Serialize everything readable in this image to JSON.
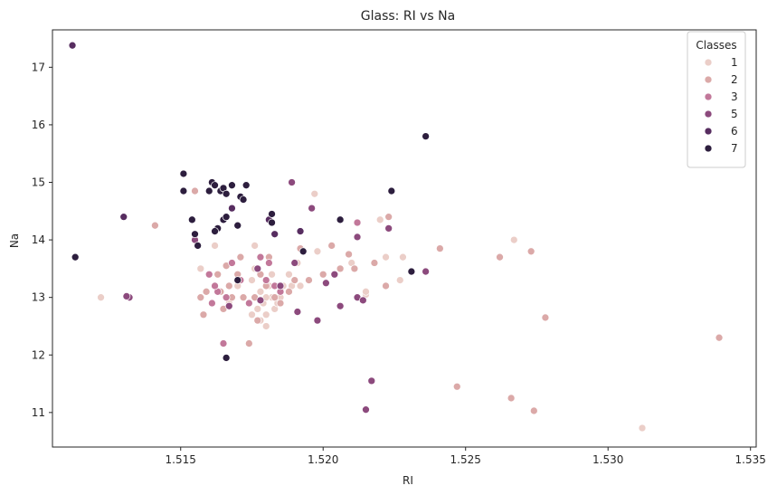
{
  "chart_data": {
    "type": "scatter",
    "title": "Glass: RI vs Na",
    "xlabel": "RI",
    "ylabel": "Na",
    "xlim": [
      1.5105,
      1.5352
    ],
    "ylim": [
      10.4,
      17.65
    ],
    "xticks": [
      1.515,
      1.52,
      1.525,
      1.53,
      1.535
    ],
    "xtick_labels": [
      "1.515",
      "1.520",
      "1.525",
      "1.530",
      "1.535"
    ],
    "yticks": [
      11,
      12,
      13,
      14,
      15,
      16,
      17
    ],
    "ytick_labels": [
      "11",
      "12",
      "13",
      "14",
      "15",
      "16",
      "17"
    ],
    "grid": false,
    "legend": {
      "title": "Classes",
      "placement": "top-right"
    },
    "series": [
      {
        "name": "1",
        "color": "#ebcec8",
        "points": [
          [
            1.5122,
            13.0
          ],
          [
            1.5157,
            13.5
          ],
          [
            1.5162,
            13.9
          ],
          [
            1.5167,
            12.9
          ],
          [
            1.517,
            13.2
          ],
          [
            1.5172,
            13.0
          ],
          [
            1.5174,
            12.9
          ],
          [
            1.5175,
            13.3
          ],
          [
            1.5176,
            13.5
          ],
          [
            1.5177,
            12.8
          ],
          [
            1.5178,
            12.6
          ],
          [
            1.5178,
            13.1
          ],
          [
            1.5179,
            12.9
          ],
          [
            1.518,
            12.7
          ],
          [
            1.5181,
            13.2
          ],
          [
            1.5182,
            13.0
          ],
          [
            1.5183,
            12.8
          ],
          [
            1.5184,
            12.9
          ],
          [
            1.5186,
            13.2
          ],
          [
            1.5188,
            13.4
          ],
          [
            1.5189,
            13.2
          ],
          [
            1.5176,
            13.9
          ],
          [
            1.518,
            12.5
          ],
          [
            1.5182,
            13.4
          ],
          [
            1.5185,
            13.0
          ],
          [
            1.5191,
            13.6
          ],
          [
            1.5192,
            13.2
          ],
          [
            1.5197,
            14.8
          ],
          [
            1.5198,
            13.8
          ],
          [
            1.521,
            13.6
          ],
          [
            1.5215,
            13.05
          ],
          [
            1.5215,
            13.1
          ],
          [
            1.522,
            14.35
          ],
          [
            1.5222,
            13.7
          ],
          [
            1.5227,
            13.3
          ],
          [
            1.5228,
            13.7
          ],
          [
            1.5267,
            14.0
          ],
          [
            1.5312,
            10.73
          ],
          [
            1.5175,
            12.7
          ],
          [
            1.518,
            13.0
          ]
        ]
      },
      {
        "name": "2",
        "color": "#dba9a8",
        "points": [
          [
            1.5141,
            14.25
          ],
          [
            1.5155,
            14.85
          ],
          [
            1.5157,
            13.0
          ],
          [
            1.5158,
            12.7
          ],
          [
            1.5159,
            13.1
          ],
          [
            1.5161,
            12.9
          ],
          [
            1.5163,
            13.4
          ],
          [
            1.5164,
            13.1
          ],
          [
            1.5165,
            12.8
          ],
          [
            1.5166,
            13.55
          ],
          [
            1.5167,
            13.2
          ],
          [
            1.5168,
            13.0
          ],
          [
            1.517,
            13.4
          ],
          [
            1.5172,
            13.0
          ],
          [
            1.5174,
            12.2
          ],
          [
            1.5177,
            12.6
          ],
          [
            1.5178,
            13.4
          ],
          [
            1.518,
            13.2
          ],
          [
            1.5181,
            13.7
          ],
          [
            1.5183,
            13.0
          ],
          [
            1.5185,
            12.9
          ],
          [
            1.5188,
            13.1
          ],
          [
            1.519,
            13.3
          ],
          [
            1.5192,
            13.85
          ],
          [
            1.5195,
            13.3
          ],
          [
            1.52,
            13.4
          ],
          [
            1.5203,
            13.9
          ],
          [
            1.5206,
            13.5
          ],
          [
            1.5209,
            13.75
          ],
          [
            1.5211,
            13.5
          ],
          [
            1.5218,
            13.6
          ],
          [
            1.5222,
            13.2
          ],
          [
            1.5223,
            14.4
          ],
          [
            1.5241,
            13.85
          ],
          [
            1.5247,
            11.45
          ],
          [
            1.5262,
            13.7
          ],
          [
            1.5266,
            11.25
          ],
          [
            1.5273,
            13.8
          ],
          [
            1.5274,
            11.03
          ],
          [
            1.5278,
            12.65
          ],
          [
            1.5339,
            12.3
          ],
          [
            1.5171,
            13.7
          ],
          [
            1.5176,
            13.0
          ]
        ]
      },
      {
        "name": "3",
        "color": "#c2789a",
        "points": [
          [
            1.516,
            13.4
          ],
          [
            1.5163,
            13.1
          ],
          [
            1.5165,
            12.2
          ],
          [
            1.5168,
            13.6
          ],
          [
            1.5171,
            13.3
          ],
          [
            1.5174,
            12.9
          ],
          [
            1.5177,
            13.5
          ],
          [
            1.518,
            13.3
          ],
          [
            1.5183,
            13.2
          ],
          [
            1.5185,
            13.1
          ],
          [
            1.5162,
            13.2
          ],
          [
            1.5166,
            13.0
          ],
          [
            1.5178,
            13.7
          ],
          [
            1.5181,
            13.6
          ],
          [
            1.5212,
            14.3
          ],
          [
            1.5161,
            12.9
          ]
        ]
      },
      {
        "name": "5",
        "color": "#8c4a7d",
        "points": [
          [
            1.5132,
            13.0
          ],
          [
            1.5131,
            13.02
          ],
          [
            1.5155,
            14.0
          ],
          [
            1.5167,
            12.85
          ],
          [
            1.5177,
            13.5
          ],
          [
            1.5185,
            13.2
          ],
          [
            1.5189,
            15.0
          ],
          [
            1.519,
            13.6
          ],
          [
            1.5193,
            13.8
          ],
          [
            1.5196,
            14.55
          ],
          [
            1.5198,
            12.6
          ],
          [
            1.5201,
            13.25
          ],
          [
            1.5204,
            13.4
          ],
          [
            1.5206,
            12.85
          ],
          [
            1.5212,
            13.0
          ],
          [
            1.5212,
            14.05
          ],
          [
            1.5214,
            12.95
          ],
          [
            1.5215,
            11.05
          ],
          [
            1.5217,
            11.55
          ],
          [
            1.5223,
            14.2
          ],
          [
            1.5236,
            13.45
          ],
          [
            1.5191,
            12.75
          ],
          [
            1.5178,
            12.95
          ]
        ]
      },
      {
        "name": "6",
        "color": "#572d60",
        "points": [
          [
            1.5112,
            17.38
          ],
          [
            1.513,
            14.4
          ],
          [
            1.5168,
            14.55
          ],
          [
            1.5183,
            14.1
          ],
          [
            1.5181,
            14.35
          ],
          [
            1.5192,
            14.15
          ]
        ]
      },
      {
        "name": "7",
        "color": "#2d1e3e",
        "points": [
          [
            1.5113,
            13.7
          ],
          [
            1.5151,
            15.15
          ],
          [
            1.5151,
            14.85
          ],
          [
            1.5154,
            14.35
          ],
          [
            1.5155,
            14.1
          ],
          [
            1.5156,
            13.9
          ],
          [
            1.516,
            14.85
          ],
          [
            1.5161,
            15.0
          ],
          [
            1.5162,
            14.95
          ],
          [
            1.5163,
            14.2
          ],
          [
            1.5164,
            14.85
          ],
          [
            1.5165,
            14.35
          ],
          [
            1.5165,
            14.9
          ],
          [
            1.5166,
            14.4
          ],
          [
            1.5166,
            14.8
          ],
          [
            1.5168,
            14.95
          ],
          [
            1.517,
            14.25
          ],
          [
            1.5171,
            14.75
          ],
          [
            1.5172,
            14.7
          ],
          [
            1.5173,
            14.95
          ],
          [
            1.5182,
            14.45
          ],
          [
            1.5182,
            14.3
          ],
          [
            1.5193,
            13.8
          ],
          [
            1.5206,
            14.35
          ],
          [
            1.5224,
            14.85
          ],
          [
            1.5231,
            13.45
          ],
          [
            1.5236,
            15.8
          ],
          [
            1.5166,
            11.95
          ],
          [
            1.517,
            13.3
          ],
          [
            1.5162,
            14.15
          ]
        ]
      }
    ]
  }
}
